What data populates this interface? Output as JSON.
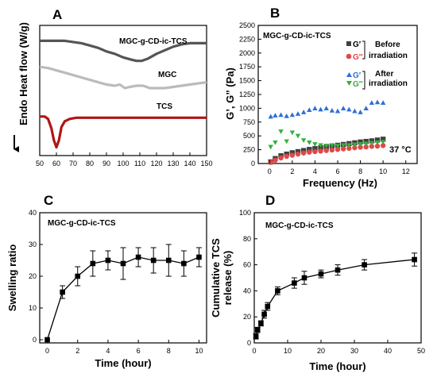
{
  "chart_data": [
    {
      "panel": "A",
      "type": "line",
      "xlabel": "",
      "ylabel": "Endo Heat flow (W/g)",
      "xlim": [
        50,
        150
      ],
      "x_ticks": [
        50,
        60,
        70,
        80,
        90,
        100,
        110,
        120,
        130,
        140,
        150
      ],
      "series": [
        {
          "name": "MGC-g-CD-ic-TCS",
          "color": "#555555",
          "x": [
            50,
            60,
            65,
            70,
            75,
            80,
            85,
            90,
            95,
            100,
            105,
            108,
            111,
            115,
            120,
            125,
            130,
            135,
            140,
            145,
            150
          ],
          "y": [
            0.82,
            0.82,
            0.82,
            0.81,
            0.8,
            0.78,
            0.76,
            0.73,
            0.71,
            0.68,
            0.66,
            0.65,
            0.65,
            0.67,
            0.71,
            0.74,
            0.77,
            0.79,
            0.8,
            0.8,
            0.8
          ]
        },
        {
          "name": "MGC",
          "color": "#bbbbbb",
          "x": [
            50,
            55,
            60,
            65,
            70,
            75,
            80,
            85,
            90,
            95,
            98,
            101,
            104,
            108,
            112,
            116,
            120,
            125,
            130,
            135,
            140,
            145,
            150
          ],
          "y": [
            0.6,
            0.59,
            0.57,
            0.55,
            0.53,
            0.51,
            0.49,
            0.47,
            0.45,
            0.44,
            0.45,
            0.42,
            0.43,
            0.44,
            0.44,
            0.42,
            0.42,
            0.42,
            0.43,
            0.44,
            0.45,
            0.46,
            0.47
          ]
        },
        {
          "name": "TCS",
          "color": "#b01515",
          "x": [
            50,
            53,
            55,
            57,
            58.5,
            60,
            61.5,
            63,
            65,
            68,
            72,
            80,
            90,
            100,
            110,
            120,
            130,
            140,
            150
          ],
          "y": [
            0.18,
            0.18,
            0.16,
            0.08,
            -0.02,
            -0.08,
            -0.02,
            0.09,
            0.14,
            0.16,
            0.17,
            0.17,
            0.17,
            0.17,
            0.17,
            0.17,
            0.17,
            0.17,
            0.17
          ]
        }
      ]
    },
    {
      "panel": "B",
      "type": "scatter",
      "xlabel": "Frequency (Hz)",
      "ylabel": "G’, G” (Pa)",
      "xlim": [
        -1,
        13
      ],
      "ylim": [
        0,
        2500
      ],
      "x_ticks": [
        0,
        2,
        4,
        6,
        8,
        10,
        12
      ],
      "y_ticks": [
        0,
        250,
        500,
        750,
        1000,
        1250,
        1500,
        1750,
        2000,
        2250,
        2500
      ],
      "annotations": [
        "MGC-g-CD-ic-TCS",
        "37 °C"
      ],
      "legend_groups": [
        "Before irradiation",
        "After irradiation"
      ],
      "series": [
        {
          "name": "G′",
          "group": "before",
          "marker": "square",
          "color": "#404040",
          "x": [
            0.1,
            0.5,
            1,
            1.5,
            2,
            2.5,
            3,
            3.5,
            4,
            4.5,
            5,
            5.5,
            6,
            6.5,
            7,
            7.5,
            8,
            8.5,
            9,
            9.5,
            10
          ],
          "y": [
            30,
            90,
            140,
            170,
            195,
            215,
            235,
            255,
            270,
            285,
            300,
            315,
            330,
            345,
            360,
            375,
            390,
            400,
            410,
            425,
            440
          ]
        },
        {
          "name": "G″",
          "group": "before",
          "marker": "circle",
          "color": "#e04848",
          "x": [
            0.1,
            0.5,
            1,
            1.5,
            2,
            2.5,
            3,
            3.5,
            4,
            4.5,
            5,
            5.5,
            6,
            6.5,
            7,
            7.5,
            8,
            8.5,
            9,
            9.5,
            10
          ],
          "y": [
            20,
            60,
            100,
            130,
            150,
            170,
            190,
            205,
            215,
            225,
            235,
            245,
            255,
            265,
            275,
            285,
            295,
            300,
            310,
            315,
            325
          ]
        },
        {
          "name": "G′",
          "group": "after",
          "marker": "triangle-up",
          "color": "#2f6fd6",
          "x": [
            0.1,
            0.5,
            1,
            1.5,
            2,
            2.5,
            3,
            3.5,
            4,
            4.5,
            5,
            5.5,
            6,
            6.5,
            7,
            7.5,
            8,
            8.5,
            9,
            9.5,
            10
          ],
          "y": [
            850,
            870,
            880,
            860,
            880,
            900,
            930,
            970,
            1000,
            980,
            1000,
            960,
            950,
            1000,
            980,
            950,
            930,
            1000,
            1100,
            1110,
            1100
          ]
        },
        {
          "name": "G″",
          "group": "after",
          "marker": "triangle-down",
          "color": "#33b03a",
          "x": [
            0.1,
            0.5,
            1,
            1.5,
            2,
            2.5,
            3,
            3.5,
            4,
            4.5,
            5,
            5.5,
            6,
            6.5,
            7,
            7.5,
            8,
            8.5,
            9,
            9.5,
            10
          ],
          "y": [
            300,
            380,
            580,
            400,
            560,
            500,
            420,
            380,
            350,
            330,
            320,
            330,
            320,
            330,
            330,
            340,
            350,
            360,
            370,
            380,
            390
          ]
        }
      ]
    },
    {
      "panel": "C",
      "type": "line",
      "title": "MGC-g-CD-ic-TCS",
      "xlabel": "Time (hour)",
      "ylabel": "Swelling ratio",
      "xlim": [
        -0.5,
        10.5
      ],
      "ylim": [
        -1,
        40
      ],
      "x_ticks": [
        0,
        2,
        4,
        6,
        8,
        10
      ],
      "y_ticks": [
        0,
        10,
        20,
        30,
        40
      ],
      "series": [
        {
          "marker": "square",
          "color": "#000000",
          "x": [
            0,
            1,
            2,
            3,
            4,
            5,
            6,
            7,
            8,
            9,
            10
          ],
          "y": [
            0,
            15,
            20,
            24,
            25,
            24,
            26,
            25,
            25,
            24,
            26
          ],
          "error": [
            0,
            2,
            3,
            4,
            3,
            5,
            3,
            4,
            5,
            4,
            3
          ]
        }
      ]
    },
    {
      "panel": "D",
      "type": "line",
      "title": "MGC-g-CD-ic-TCS",
      "xlabel": "Time (hour)",
      "ylabel": "Cumulative TCS release (%)",
      "xlim": [
        0,
        50
      ],
      "ylim": [
        0,
        100
      ],
      "x_ticks": [
        0,
        10,
        20,
        30,
        40,
        50
      ],
      "y_ticks": [
        0,
        20,
        40,
        60,
        80,
        100
      ],
      "series": [
        {
          "marker": "square",
          "color": "#000000",
          "x": [
            0.5,
            1,
            2,
            3,
            4,
            7,
            12,
            15,
            20,
            25,
            33,
            48
          ],
          "y": [
            5,
            10,
            15,
            22,
            28,
            40,
            46,
            50,
            53,
            56,
            60,
            64
          ],
          "error": [
            2,
            2,
            2,
            3,
            3,
            3,
            4,
            5,
            3,
            4,
            4,
            5
          ]
        }
      ]
    }
  ],
  "labels": {
    "panel_a": "A",
    "panel_b": "B",
    "panel_c": "C",
    "panel_d": "D",
    "a_ylabel": "Endo Heat flow (W/g)",
    "a_series1": "MGC-g-CD-ic-TCS",
    "a_series2": "MGC",
    "a_series3": "TCS",
    "b_title": "MGC-g-CD-ic-TCS",
    "b_ylabel": "G’, G” (Pa)",
    "b_xlabel": "Frequency (Hz)",
    "b_gp": "G′",
    "b_gpp": "G″",
    "b_before_1": "Before",
    "b_before_2": "irradiation",
    "b_after_1": "After",
    "b_after_2": "irradiation",
    "b_temp": "37 °C",
    "c_title": "MGC-g-CD-ic-TCS",
    "c_ylabel": "Swelling ratio",
    "c_xlabel": "Time (hour)",
    "d_title": "MGC-g-CD-ic-TCS",
    "d_ylabel_1": "Cumulative TCS",
    "d_ylabel_2": "release (%)",
    "d_xlabel": "Time (hour)"
  }
}
